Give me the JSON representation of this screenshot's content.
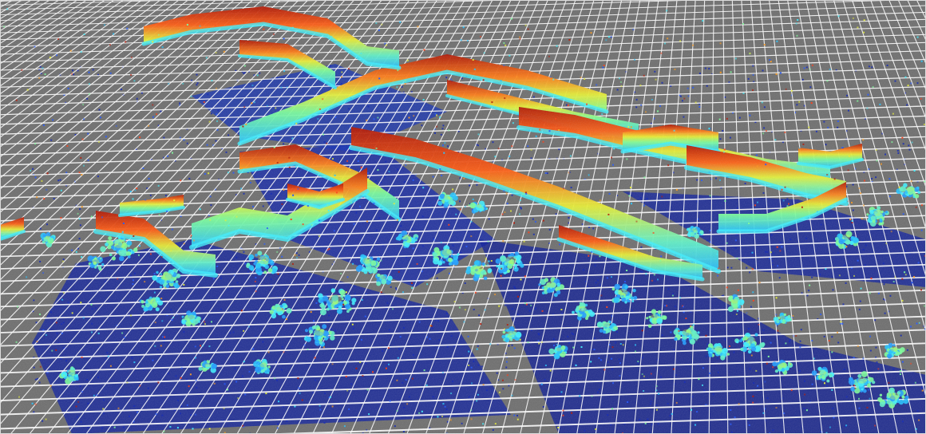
{
  "scene": {
    "background_color": "#6e6e6e",
    "grid_color": "#ffffff",
    "colormap": [
      "#0a1a9a",
      "#1f55ff",
      "#23c4ff",
      "#3df0ff",
      "#7cff9a",
      "#e8f034",
      "#ff9a1a",
      "#ff3a10",
      "#9a0a00"
    ],
    "description_free": true
  }
}
